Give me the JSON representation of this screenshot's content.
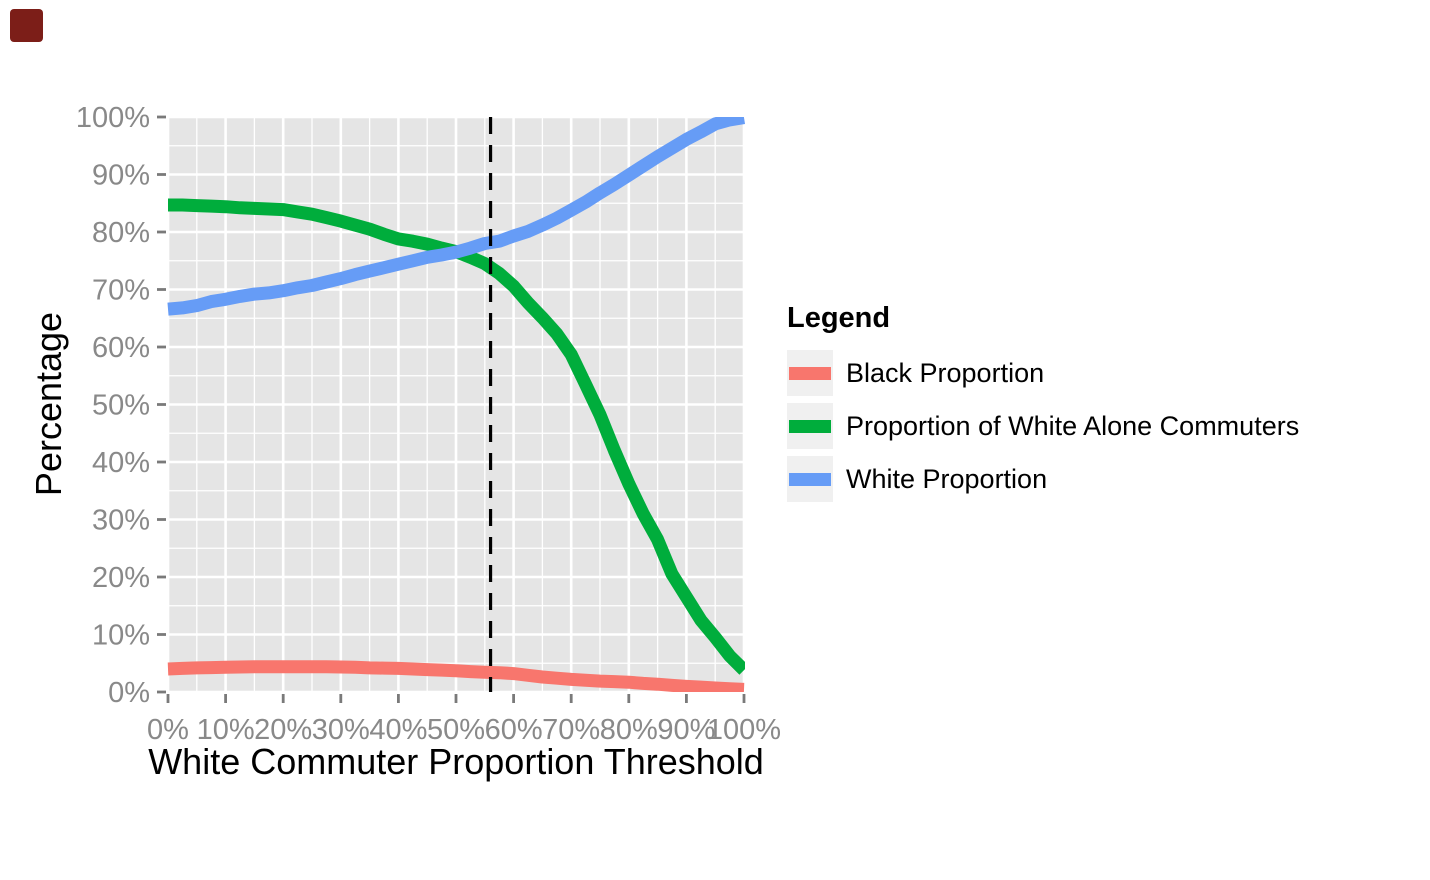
{
  "corner_marker": {
    "color": "#7C1E18"
  },
  "chart": {
    "y_axis_title": "Percentage",
    "x_axis_title": "White Commuter Proportion Threshold",
    "panel_bg": "#E5E5E5",
    "grid_color": "#FFFFFF",
    "tick_color": "#7A7A7A",
    "tick_label_color": "#898989",
    "x_ticks": {
      "values": [
        0,
        10,
        20,
        30,
        40,
        50,
        60,
        70,
        80,
        90,
        100
      ],
      "labels": [
        "0%",
        "10%",
        "20%",
        "30%",
        "40%",
        "50%",
        "60%",
        "70%",
        "80%",
        "90%",
        "100%"
      ]
    },
    "y_ticks": {
      "values": [
        0,
        10,
        20,
        30,
        40,
        50,
        60,
        70,
        80,
        90,
        100
      ],
      "labels": [
        "0%",
        "10%",
        "20%",
        "30%",
        "40%",
        "50%",
        "60%",
        "70%",
        "80%",
        "90%",
        "100%"
      ]
    }
  },
  "legend": {
    "title": "Legend",
    "items": [
      {
        "label": "Black Proportion",
        "color": "#F8766D"
      },
      {
        "label": "Proportion of White Alone Commuters",
        "color": "#00AD3C"
      },
      {
        "label": "White Proportion",
        "color": "#669CF6"
      }
    ]
  },
  "chart_data": {
    "type": "line",
    "title": "",
    "xlabel": "White Commuter Proportion Threshold",
    "ylabel": "Percentage",
    "xlim": [
      0,
      100
    ],
    "ylim": [
      0,
      100
    ],
    "x_unit": "percent",
    "y_unit": "percent",
    "grid": "white major (10%) and minor (5%) gridlines on grey panel",
    "legend_position": "right",
    "x": [
      0,
      2.5,
      5,
      7.5,
      10,
      12.5,
      15,
      17.5,
      20,
      22.5,
      25,
      27.5,
      30,
      32.5,
      35,
      37.5,
      40,
      42.5,
      45,
      47.5,
      50,
      52.5,
      55,
      57.5,
      60,
      62.5,
      65,
      67.5,
      70,
      72.5,
      75,
      77.5,
      80,
      82.5,
      85,
      87.5,
      90,
      92.5,
      95,
      97.5,
      100
    ],
    "series": [
      {
        "name": "Black Proportion",
        "color": "#F8766D",
        "values": [
          4.0,
          4.1,
          4.2,
          4.25,
          4.3,
          4.35,
          4.4,
          4.4,
          4.4,
          4.4,
          4.4,
          4.4,
          4.35,
          4.3,
          4.2,
          4.15,
          4.1,
          4.0,
          3.9,
          3.8,
          3.7,
          3.55,
          3.45,
          3.35,
          3.2,
          2.9,
          2.6,
          2.4,
          2.2,
          2.05,
          1.9,
          1.8,
          1.7,
          1.5,
          1.35,
          1.15,
          1.0,
          0.85,
          0.7,
          0.55,
          0.45
        ]
      },
      {
        "name": "Proportion of White Alone Commuters",
        "color": "#00AD3C",
        "values": [
          84.7,
          84.7,
          84.6,
          84.5,
          84.4,
          84.2,
          84.1,
          84.0,
          83.9,
          83.5,
          83.1,
          82.5,
          81.9,
          81.2,
          80.5,
          79.6,
          78.8,
          78.4,
          77.9,
          77.2,
          76.6,
          75.6,
          74.5,
          72.8,
          70.6,
          67.7,
          65.1,
          62.3,
          58.7,
          53.5,
          48.2,
          42.0,
          36.2,
          31.0,
          26.5,
          20.5,
          16.5,
          12.5,
          9.5,
          6.3,
          3.8
        ]
      },
      {
        "name": "White Proportion",
        "color": "#669CF6",
        "values": [
          66.6,
          66.8,
          67.2,
          67.9,
          68.3,
          68.8,
          69.2,
          69.4,
          69.8,
          70.3,
          70.7,
          71.3,
          71.9,
          72.6,
          73.2,
          73.8,
          74.4,
          75.0,
          75.6,
          76.0,
          76.5,
          77.2,
          78.0,
          78.4,
          79.3,
          80.1,
          81.2,
          82.4,
          83.8,
          85.2,
          86.8,
          88.3,
          89.9,
          91.5,
          93.1,
          94.6,
          96.1,
          97.4,
          98.8,
          99.5,
          99.9
        ]
      }
    ],
    "reference_line": {
      "orientation": "vertical",
      "x": 56,
      "style": "dashed",
      "color": "#000000"
    }
  }
}
